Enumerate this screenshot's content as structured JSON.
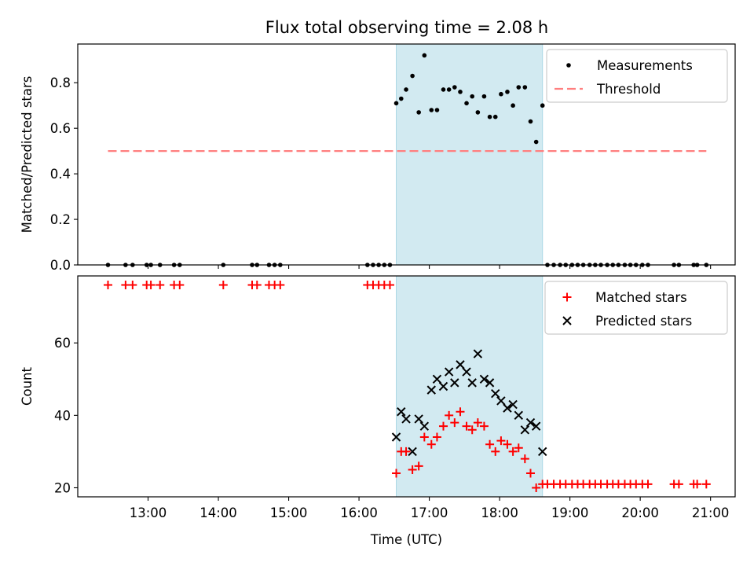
{
  "chart_data": [
    {
      "type": "scatter",
      "title": "Flux total observing time = 2.08 h",
      "xlabel": "",
      "ylabel": "Matched/Predicted stars",
      "xlim": [
        12.0,
        21.35
      ],
      "ylim": [
        0,
        0.97
      ],
      "yticks": [
        0.0,
        0.2,
        0.4,
        0.6,
        0.8
      ],
      "ytick_labels": [
        "0.0",
        "0.2",
        "0.4",
        "0.6",
        "0.8"
      ],
      "xticks": [
        13,
        14,
        15,
        16,
        17,
        18,
        19,
        20,
        21
      ],
      "shaded_interval": [
        16.53,
        18.61
      ],
      "shade_color": "#add8e6",
      "legend_position": "top-right",
      "series": [
        {
          "name": "Measurements",
          "marker": "dot",
          "color": "#000000",
          "x": [
            12.43,
            12.68,
            12.78,
            12.98,
            13.04,
            13.17,
            13.37,
            13.45,
            14.07,
            14.48,
            14.55,
            14.72,
            14.8,
            14.88,
            16.12,
            16.2,
            16.28,
            16.36,
            16.44,
            16.53,
            16.6,
            16.67,
            16.76,
            16.85,
            16.93,
            17.03,
            17.11,
            17.2,
            17.28,
            17.36,
            17.44,
            17.53,
            17.61,
            17.69,
            17.78,
            17.86,
            17.94,
            18.02,
            18.11,
            18.19,
            18.27,
            18.36,
            18.44,
            18.52,
            18.61,
            18.68,
            18.77,
            18.86,
            18.94,
            19.03,
            19.11,
            19.19,
            19.28,
            19.36,
            19.44,
            19.53,
            19.61,
            19.69,
            19.78,
            19.86,
            19.94,
            20.03,
            20.11,
            20.48,
            20.55,
            20.76,
            20.81,
            20.94
          ],
          "y": [
            0,
            0,
            0,
            0,
            0,
            0,
            0,
            0,
            0,
            0,
            0,
            0,
            0,
            0,
            0,
            0,
            0,
            0,
            0,
            0.71,
            0.73,
            0.77,
            0.83,
            0.67,
            0.92,
            0.68,
            0.68,
            0.77,
            0.77,
            0.78,
            0.76,
            0.71,
            0.74,
            0.67,
            0.74,
            0.65,
            0.65,
            0.75,
            0.76,
            0.7,
            0.78,
            0.78,
            0.63,
            0.54,
            0.7,
            0,
            0,
            0,
            0,
            0,
            0,
            0,
            0,
            0,
            0,
            0,
            0,
            0,
            0,
            0,
            0,
            0,
            0,
            0,
            0,
            0,
            0,
            0
          ]
        },
        {
          "name": "Threshold",
          "style": "dashed",
          "color": "#ff7f7f",
          "x": [
            12.43,
            20.94
          ],
          "y": [
            0.5,
            0.5
          ]
        }
      ]
    },
    {
      "type": "scatter",
      "title": "",
      "xlabel": "Time (UTC)",
      "ylabel": "Count",
      "xlim": [
        12.0,
        21.35
      ],
      "ylim": [
        17.5,
        78.5
      ],
      "yticks": [
        20,
        40,
        60
      ],
      "ytick_labels": [
        "20",
        "40",
        "60"
      ],
      "xticks": [
        13,
        14,
        15,
        16,
        17,
        18,
        19,
        20,
        21
      ],
      "xtick_labels": [
        "13:00",
        "14:00",
        "15:00",
        "16:00",
        "17:00",
        "18:00",
        "19:00",
        "20:00",
        "21:00"
      ],
      "shaded_interval": [
        16.53,
        18.61
      ],
      "shade_color": "#add8e6",
      "legend_position": "top-right",
      "series": [
        {
          "name": "Matched stars",
          "marker": "plus",
          "color": "#ff0000",
          "x": [
            12.43,
            12.68,
            12.78,
            12.98,
            13.04,
            13.17,
            13.37,
            13.45,
            14.07,
            14.48,
            14.55,
            14.72,
            14.8,
            14.88,
            16.12,
            16.2,
            16.28,
            16.36,
            16.44,
            16.53,
            16.6,
            16.67,
            16.76,
            16.85,
            16.93,
            17.03,
            17.11,
            17.2,
            17.28,
            17.36,
            17.44,
            17.53,
            17.61,
            17.69,
            17.78,
            17.86,
            17.94,
            18.02,
            18.11,
            18.19,
            18.27,
            18.36,
            18.44,
            18.52,
            18.61,
            18.68,
            18.77,
            18.86,
            18.94,
            19.03,
            19.11,
            19.19,
            19.28,
            19.36,
            19.44,
            19.53,
            19.61,
            19.69,
            19.78,
            19.86,
            19.94,
            20.03,
            20.11,
            20.48,
            20.55,
            20.76,
            20.81,
            20.94
          ],
          "y": [
            76,
            76,
            76,
            76,
            76,
            76,
            76,
            76,
            76,
            76,
            76,
            76,
            76,
            76,
            76,
            76,
            76,
            76,
            76,
            24,
            30,
            30,
            25,
            26,
            34,
            32,
            34,
            37,
            40,
            38,
            41,
            37,
            36,
            38,
            37,
            32,
            30,
            33,
            32,
            30,
            31,
            28,
            24,
            20,
            21,
            21,
            21,
            21,
            21,
            21,
            21,
            21,
            21,
            21,
            21,
            21,
            21,
            21,
            21,
            21,
            21,
            21,
            21,
            21,
            21,
            21,
            21,
            21
          ]
        },
        {
          "name": "Predicted stars",
          "marker": "x",
          "color": "#000000",
          "x": [
            16.53,
            16.6,
            16.67,
            16.76,
            16.85,
            16.93,
            17.03,
            17.11,
            17.2,
            17.28,
            17.36,
            17.44,
            17.53,
            17.61,
            17.69,
            17.78,
            17.86,
            17.94,
            18.02,
            18.11,
            18.19,
            18.27,
            18.36,
            18.44,
            18.52,
            18.61
          ],
          "y": [
            34,
            41,
            39,
            30,
            39,
            37,
            47,
            50,
            48,
            52,
            49,
            54,
            52,
            49,
            57,
            50,
            49,
            46,
            44,
            42,
            43,
            40,
            36,
            38,
            37,
            30
          ]
        }
      ]
    }
  ]
}
